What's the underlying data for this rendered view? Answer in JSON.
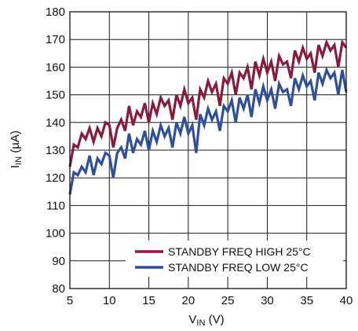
{
  "chart_data": {
    "type": "line",
    "title": "",
    "xlabel": {
      "main": "V",
      "sub": "IN",
      "unit": " (V)"
    },
    "ylabel": {
      "main": "I",
      "sub": "IN",
      "unit": " (µA)"
    },
    "xlim": [
      5,
      40
    ],
    "ylim": [
      80,
      180
    ],
    "xticks": [
      5,
      10,
      15,
      20,
      25,
      30,
      35,
      40
    ],
    "yticks": [
      80,
      90,
      100,
      110,
      120,
      130,
      140,
      150,
      160,
      170,
      180
    ],
    "grid": true,
    "legend_position": "bottom-right",
    "series": [
      {
        "name": "STANDBY FREQ HIGH 25°C",
        "color": "#8b1a3a",
        "x": [
          5,
          5.5,
          6,
          6.5,
          7,
          7.5,
          8,
          8.5,
          9,
          9.5,
          10,
          10.5,
          11,
          11.5,
          12,
          12.5,
          13,
          13.5,
          14,
          14.5,
          15,
          15.5,
          16,
          16.5,
          17,
          17.5,
          18,
          18.5,
          19,
          19.5,
          20,
          20.5,
          21,
          21.5,
          22,
          22.5,
          23,
          23.5,
          24,
          24.5,
          25,
          25.5,
          26,
          26.5,
          27,
          27.5,
          28,
          28.5,
          29,
          29.5,
          30,
          30.5,
          31,
          31.5,
          32,
          32.5,
          33,
          33.5,
          34,
          34.5,
          35,
          35.5,
          36,
          36.5,
          37,
          37.5,
          38,
          38.5,
          39,
          39.5,
          40
        ],
        "values": [
          124,
          132,
          131,
          136,
          134,
          138,
          133,
          138,
          135,
          140,
          139,
          131,
          138,
          141,
          137,
          146,
          139,
          144,
          142,
          147,
          140,
          147,
          143,
          149,
          146,
          148,
          141,
          150,
          146,
          152,
          147,
          149,
          141,
          152,
          149,
          155,
          151,
          154,
          146,
          156,
          154,
          158,
          150,
          158,
          156,
          160,
          152,
          162,
          157,
          163,
          158,
          162,
          155,
          164,
          161,
          162,
          156,
          166,
          162,
          167,
          163,
          165,
          158,
          168,
          164,
          169,
          166,
          168,
          160,
          169,
          167
        ]
      },
      {
        "name": "STANDBY FREQ LOW 25°C",
        "color": "#2c4f9e",
        "x": [
          5,
          5.5,
          6,
          6.5,
          7,
          7.5,
          8,
          8.5,
          9,
          9.5,
          10,
          10.5,
          11,
          11.5,
          12,
          12.5,
          13,
          13.5,
          14,
          14.5,
          15,
          15.5,
          16,
          16.5,
          17,
          17.5,
          18,
          18.5,
          19,
          19.5,
          20,
          20.5,
          21,
          21.5,
          22,
          22.5,
          23,
          23.5,
          24,
          24.5,
          25,
          25.5,
          26,
          26.5,
          27,
          27.5,
          28,
          28.5,
          29,
          29.5,
          30,
          30.5,
          31,
          31.5,
          32,
          32.5,
          33,
          33.5,
          34,
          34.5,
          35,
          35.5,
          36,
          36.5,
          37,
          37.5,
          38,
          38.5,
          39,
          39.5,
          40
        ],
        "values": [
          114,
          122,
          121,
          124,
          122,
          128,
          121,
          127,
          125,
          129,
          128,
          120,
          129,
          131,
          127,
          136,
          129,
          134,
          132,
          137,
          130,
          137,
          133,
          139,
          135,
          138,
          131,
          140,
          136,
          142,
          136,
          139,
          129,
          143,
          139,
          145,
          141,
          144,
          137,
          146,
          144,
          148,
          140,
          149,
          145,
          150,
          142,
          152,
          147,
          153,
          148,
          152,
          145,
          154,
          151,
          152,
          146,
          156,
          152,
          157,
          153,
          155,
          148,
          158,
          154,
          159,
          156,
          158,
          150,
          159,
          151
        ]
      }
    ]
  }
}
